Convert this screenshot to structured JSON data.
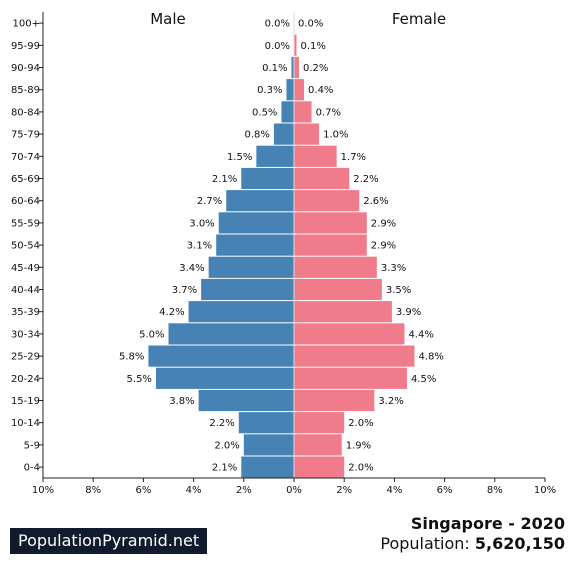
{
  "chart_data": {
    "type": "bar",
    "orientation": "horizontal-population-pyramid",
    "categories": [
      "100+",
      "95-99",
      "90-94",
      "85-89",
      "80-84",
      "75-79",
      "70-74",
      "65-69",
      "60-64",
      "55-59",
      "50-54",
      "45-49",
      "40-44",
      "35-39",
      "30-34",
      "25-29",
      "20-24",
      "15-19",
      "10-14",
      "5-9",
      "0-4"
    ],
    "series": [
      {
        "name": "Male",
        "color": "#4682b4",
        "values": [
          0.0,
          0.0,
          0.1,
          0.3,
          0.5,
          0.8,
          1.5,
          2.1,
          2.7,
          3.0,
          3.1,
          3.4,
          3.7,
          4.2,
          5.0,
          5.8,
          5.5,
          3.8,
          2.2,
          2.0,
          2.1
        ],
        "labels": [
          "0.0%",
          "0.0%",
          "0.1%",
          "0.3%",
          "0.5%",
          "0.8%",
          "1.5%",
          "2.1%",
          "2.7%",
          "3.0%",
          "3.1%",
          "3.4%",
          "3.7%",
          "4.2%",
          "5.0%",
          "5.8%",
          "5.5%",
          "3.8%",
          "2.2%",
          "2.0%",
          "2.1%"
        ]
      },
      {
        "name": "Female",
        "color": "#f07b8a",
        "values": [
          0.0,
          0.1,
          0.2,
          0.4,
          0.7,
          1.0,
          1.7,
          2.2,
          2.6,
          2.9,
          2.9,
          3.3,
          3.5,
          3.9,
          4.4,
          4.8,
          4.5,
          3.2,
          2.0,
          1.9,
          2.0
        ],
        "labels": [
          "0.0%",
          "0.1%",
          "0.2%",
          "0.4%",
          "0.7%",
          "1.0%",
          "1.7%",
          "2.2%",
          "2.6%",
          "2.9%",
          "2.9%",
          "3.3%",
          "3.5%",
          "3.9%",
          "4.4%",
          "4.8%",
          "4.5%",
          "3.2%",
          "2.0%",
          "1.9%",
          "2.0%"
        ]
      }
    ],
    "xlim": [
      -10,
      10
    ],
    "xticks": [
      -10,
      -8,
      -6,
      -4,
      -2,
      0,
      2,
      4,
      6,
      8,
      10
    ],
    "xtick_labels": [
      "10%",
      "8%",
      "6%",
      "4%",
      "2%",
      "0%",
      "2%",
      "4%",
      "6%",
      "8%",
      "10%"
    ],
    "grid": false
  },
  "brand": "PopulationPyramid.net",
  "country_year": "Singapore - 2020",
  "population_label": "Population:",
  "population_value": "5,620,150"
}
